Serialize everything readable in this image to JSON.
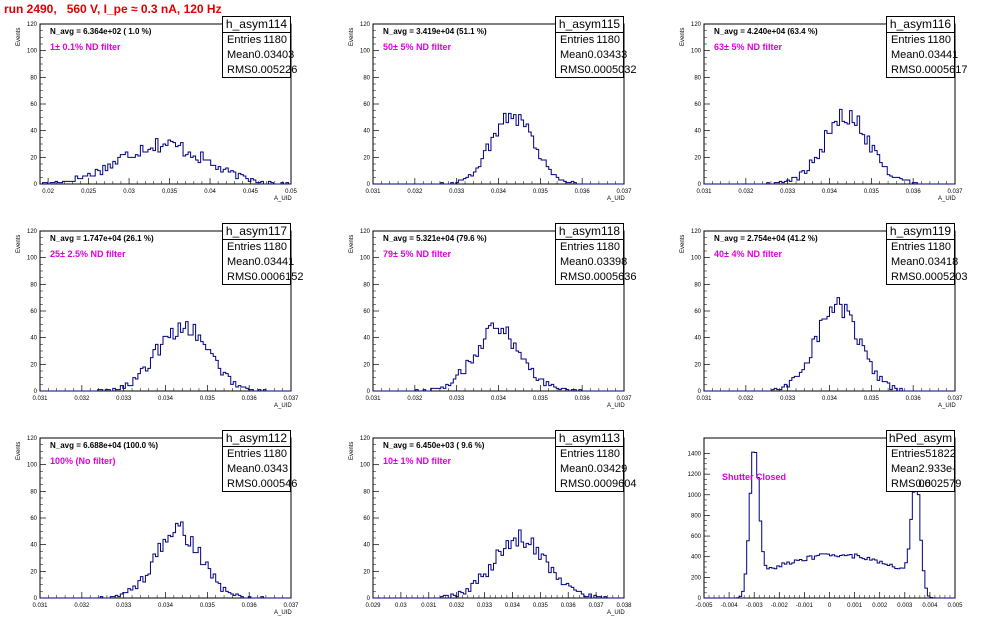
{
  "title": "run 2490,   560 V, I_pe ≈ 0.3 nA, 120 Hz",
  "colors": {
    "title": "#e00000",
    "histogram": "#000080",
    "annotation": "#e000e0",
    "axes": "#000000"
  },
  "chart_data": [
    {
      "type": "histogram",
      "name": "h_asym114",
      "stats": {
        "entries": "1180",
        "mean": "0.03403",
        "rms": "0.005226"
      },
      "n_avg": "N_avg = 6.364e+02 ( 1.0 %)",
      "note": "1± 0.1% ND filter",
      "ylabel": "Events",
      "xlabel": "A_UID",
      "xlim": [
        0.019,
        0.05
      ],
      "ylim": [
        0,
        120
      ],
      "xticks": [
        0.02,
        0.025,
        0.03,
        0.035,
        0.04,
        0.045,
        0.05
      ],
      "xtick_labels": [
        "0.02",
        "0.025",
        "0.03",
        "0.035",
        "0.04",
        "0.045",
        "0.05"
      ],
      "yticks": [
        0,
        20,
        40,
        60,
        80,
        100,
        120
      ],
      "mean": 0.03403,
      "rms": 0.005226,
      "peak": 30,
      "shape": "broad"
    },
    {
      "type": "histogram",
      "name": "h_asym115",
      "stats": {
        "entries": "1180",
        "mean": "0.03433",
        "rms": "0.0005032"
      },
      "n_avg": "N_avg = 3.419e+04 (51.1 %)",
      "note": "50± 5% ND filter",
      "ylabel": "Events",
      "xlabel": "A_UID",
      "xlim": [
        0.031,
        0.037
      ],
      "ylim": [
        0,
        120
      ],
      "xticks": [
        0.031,
        0.032,
        0.033,
        0.034,
        0.035,
        0.036,
        0.037
      ],
      "xtick_labels": [
        "0.031",
        "0.032",
        "0.033",
        "0.034",
        "0.035",
        "0.036",
        "0.037"
      ],
      "yticks": [
        0,
        20,
        40,
        60,
        80,
        100,
        120
      ],
      "mean": 0.03433,
      "rms": 0.0005032,
      "peak": 60,
      "shape": "gauss"
    },
    {
      "type": "histogram",
      "name": "h_asym116",
      "stats": {
        "entries": "1180",
        "mean": "0.03441",
        "rms": "0.0005617"
      },
      "n_avg": "N_avg = 4.240e+04 (63.4 %)",
      "note": "63± 5% ND filter",
      "ylabel": "Events",
      "xlabel": "A_UID",
      "xlim": [
        0.031,
        0.037
      ],
      "ylim": [
        0,
        120
      ],
      "xticks": [
        0.031,
        0.032,
        0.033,
        0.034,
        0.035,
        0.036,
        0.037
      ],
      "xtick_labels": [
        "0.031",
        "0.032",
        "0.033",
        "0.034",
        "0.035",
        "0.036",
        "0.037"
      ],
      "yticks": [
        0,
        20,
        40,
        60,
        80,
        100,
        120
      ],
      "mean": 0.03441,
      "rms": 0.0005617,
      "peak": 57,
      "shape": "gauss"
    },
    {
      "type": "histogram",
      "name": "h_asym117",
      "stats": {
        "entries": "1180",
        "mean": "0.03441",
        "rms": "0.0006152"
      },
      "n_avg": "N_avg = 1.747e+04 (26.1 %)",
      "note": "25± 2.5% ND filter",
      "ylabel": "Events",
      "xlabel": "A_UID",
      "xlim": [
        0.031,
        0.037
      ],
      "ylim": [
        0,
        120
      ],
      "xticks": [
        0.031,
        0.032,
        0.033,
        0.034,
        0.035,
        0.036,
        0.037
      ],
      "xtick_labels": [
        "0.031",
        "0.032",
        "0.033",
        "0.034",
        "0.035",
        "0.036",
        "0.037"
      ],
      "yticks": [
        0,
        20,
        40,
        60,
        80,
        100,
        120
      ],
      "mean": 0.03441,
      "rms": 0.0006152,
      "peak": 55,
      "shape": "gauss"
    },
    {
      "type": "histogram",
      "name": "h_asym118",
      "stats": {
        "entries": "1180",
        "mean": "0.03398",
        "rms": "0.0005636"
      },
      "n_avg": "N_avg = 5.321e+04 (79.6 %)",
      "note": "79± 5% ND filter",
      "ylabel": "Events",
      "xlabel": "A_UID",
      "xlim": [
        0.031,
        0.037
      ],
      "ylim": [
        0,
        120
      ],
      "xticks": [
        0.031,
        0.032,
        0.033,
        0.034,
        0.035,
        0.036,
        0.037
      ],
      "xtick_labels": [
        "0.031",
        "0.032",
        "0.033",
        "0.034",
        "0.035",
        "0.036",
        "0.037"
      ],
      "yticks": [
        0,
        20,
        40,
        60,
        80,
        100,
        120
      ],
      "mean": 0.03398,
      "rms": 0.0005636,
      "peak": 52,
      "shape": "gauss"
    },
    {
      "type": "histogram",
      "name": "h_asym119",
      "stats": {
        "entries": "1180",
        "mean": "0.03418",
        "rms": "0.0005203"
      },
      "n_avg": "N_avg = 2.754e+04 (41.2 %)",
      "note": "40± 4% ND filter",
      "ylabel": "Events",
      "xlabel": "A_UID",
      "xlim": [
        0.031,
        0.037
      ],
      "ylim": [
        0,
        120
      ],
      "xticks": [
        0.031,
        0.032,
        0.033,
        0.034,
        0.035,
        0.036,
        0.037
      ],
      "xtick_labels": [
        "0.031",
        "0.032",
        "0.033",
        "0.034",
        "0.035",
        "0.036",
        "0.037"
      ],
      "yticks": [
        0,
        20,
        40,
        60,
        80,
        100,
        120
      ],
      "mean": 0.03418,
      "rms": 0.0005203,
      "peak": 72,
      "shape": "gauss"
    },
    {
      "type": "histogram",
      "name": "h_asym112",
      "stats": {
        "entries": "1180",
        "mean": "0.0343",
        "rms": "0.000546"
      },
      "n_avg": "N_avg = 6.688e+04 (100.0 %)",
      "note": "100% (No filter)",
      "ylabel": "Events",
      "xlabel": "A_UID",
      "xlim": [
        0.031,
        0.037
      ],
      "ylim": [
        0,
        120
      ],
      "xticks": [
        0.031,
        0.032,
        0.033,
        0.034,
        0.035,
        0.036,
        0.037
      ],
      "xtick_labels": [
        "0.031",
        "0.032",
        "0.033",
        "0.034",
        "0.035",
        "0.036",
        "0.037"
      ],
      "yticks": [
        0,
        20,
        40,
        60,
        80,
        100,
        120
      ],
      "mean": 0.0343,
      "rms": 0.000546,
      "peak": 57,
      "shape": "gauss"
    },
    {
      "type": "histogram",
      "name": "h_asym113",
      "stats": {
        "entries": "1180",
        "mean": "0.03429",
        "rms": "0.0009604"
      },
      "n_avg": "N_avg = 6.450e+03 ( 9.6 %)",
      "note": "10± 1% ND filter",
      "ylabel": "Events",
      "xlabel": "A_UID",
      "xlim": [
        0.029,
        0.038
      ],
      "ylim": [
        0,
        120
      ],
      "xticks": [
        0.029,
        0.03,
        0.031,
        0.032,
        0.033,
        0.034,
        0.035,
        0.036,
        0.037,
        0.038
      ],
      "xtick_labels": [
        "0.029",
        "0.03",
        "0.031",
        "0.032",
        "0.033",
        "0.034",
        "0.035",
        "0.036",
        "0.037",
        "0.038"
      ],
      "yticks": [
        0,
        20,
        40,
        60,
        80,
        100,
        120
      ],
      "mean": 0.03429,
      "rms": 0.0009604,
      "peak": 50,
      "shape": "gauss"
    },
    {
      "type": "histogram",
      "name": "hPed_asym",
      "stats": {
        "entries": "51822",
        "mean": "2.933e-06",
        "rms": "0.002579"
      },
      "n_avg": "",
      "note": "Shutter Closed",
      "ylabel": "",
      "xlabel": "",
      "xlim": [
        -0.005,
        0.005
      ],
      "ylim": [
        0,
        1550
      ],
      "xticks": [
        -0.005,
        -0.004,
        -0.003,
        -0.002,
        -0.001,
        0,
        0.001,
        0.002,
        0.003,
        0.004,
        0.005
      ],
      "xtick_labels": [
        "-0.005",
        "-0.004",
        "-0.003",
        "-0.002",
        "-0.001",
        "0",
        "0.001",
        "0.002",
        "0.003",
        "0.004",
        "0.005"
      ],
      "yticks": [
        0,
        200,
        400,
        600,
        800,
        1000,
        1200,
        1400
      ],
      "mean": 2.9e-06,
      "rms": 0.002579,
      "peak": 1450,
      "shape": "bimodal"
    }
  ]
}
